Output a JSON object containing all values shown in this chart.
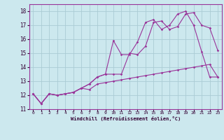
{
  "xlabel": "Windchill (Refroidissement éolien,°C)",
  "background_color": "#cce8ee",
  "grid_color": "#aaccd4",
  "line_color": "#993399",
  "spine_color": "#993399",
  "xlim": [
    -0.5,
    23.5
  ],
  "ylim": [
    11.0,
    18.5
  ],
  "xticks": [
    0,
    1,
    2,
    3,
    4,
    5,
    6,
    7,
    8,
    9,
    10,
    11,
    12,
    13,
    14,
    15,
    16,
    17,
    18,
    19,
    20,
    21,
    22,
    23
  ],
  "yticks": [
    11,
    12,
    13,
    14,
    15,
    16,
    17,
    18
  ],
  "series": [
    {
      "x": [
        0,
        1,
        2,
        3,
        4,
        5,
        6,
        7,
        8,
        9,
        10,
        11,
        12,
        13,
        14,
        15,
        16,
        17,
        18,
        19,
        20,
        21,
        22,
        23
      ],
      "y": [
        12.1,
        11.4,
        12.1,
        12.0,
        12.1,
        12.2,
        12.5,
        12.4,
        12.8,
        12.9,
        13.0,
        13.1,
        13.2,
        13.3,
        13.4,
        13.5,
        13.6,
        13.7,
        13.8,
        13.9,
        14.0,
        14.1,
        14.2,
        13.3
      ]
    },
    {
      "x": [
        0,
        1,
        2,
        3,
        4,
        5,
        6,
        7,
        8,
        9,
        10,
        11,
        12,
        13,
        14,
        15,
        16,
        17,
        18,
        19,
        20,
        21,
        22,
        23
      ],
      "y": [
        12.1,
        11.4,
        12.1,
        12.0,
        12.1,
        12.2,
        12.5,
        12.8,
        13.3,
        13.5,
        13.5,
        13.5,
        15.0,
        14.9,
        15.5,
        17.2,
        17.3,
        16.7,
        16.9,
        17.8,
        17.9,
        17.0,
        16.8,
        15.2
      ]
    },
    {
      "x": [
        0,
        1,
        2,
        3,
        4,
        5,
        6,
        7,
        8,
        9,
        10,
        11,
        12,
        13,
        14,
        15,
        16,
        17,
        18,
        19,
        20,
        21,
        22,
        23
      ],
      "y": [
        12.1,
        11.4,
        12.1,
        12.0,
        12.1,
        12.2,
        12.5,
        12.8,
        13.3,
        13.5,
        15.9,
        14.9,
        14.9,
        15.8,
        17.2,
        17.4,
        16.7,
        17.0,
        17.8,
        18.0,
        17.0,
        15.1,
        13.3,
        13.3
      ]
    }
  ]
}
